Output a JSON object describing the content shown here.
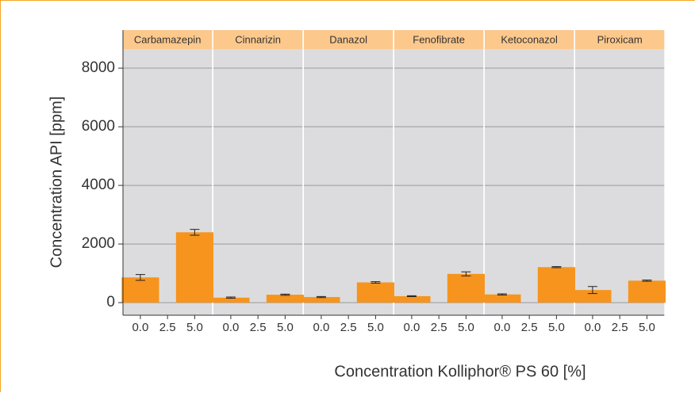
{
  "chart_data": {
    "type": "bar",
    "xlabel": "Concentration Kolliphor® PS 60 [%]",
    "ylabel": "Concentration API [ppm]",
    "color": "#f7941d",
    "strip_color": "#fdc88c",
    "panel_color": "#dcdcde",
    "ylim": [
      -430,
      8650
    ],
    "yticks": [
      0,
      2000,
      4000,
      6000,
      8000
    ],
    "grid": true,
    "xlim": [
      -1.6,
      6.6
    ],
    "xticks": [
      {
        "value": 0,
        "label": "0.0"
      },
      {
        "value": 2.5,
        "label": "2.5"
      },
      {
        "value": 5,
        "label": "5.0"
      }
    ],
    "panels": [
      {
        "title": "Carbamazepin",
        "x": [
          0,
          5
        ],
        "values": [
          860,
          2400
        ],
        "errors": [
          100,
          100
        ]
      },
      {
        "title": "Cinnarizin",
        "x": [
          0,
          5
        ],
        "values": [
          170,
          270
        ],
        "errors": [
          20,
          20
        ]
      },
      {
        "title": "Danazol",
        "x": [
          0,
          5
        ],
        "values": [
          190,
          690
        ],
        "errors": [
          20,
          25
        ]
      },
      {
        "title": "Fenofibrate",
        "x": [
          0,
          5
        ],
        "values": [
          220,
          980
        ],
        "errors": [
          15,
          70
        ]
      },
      {
        "title": "Ketoconazol",
        "x": [
          0,
          5
        ],
        "values": [
          280,
          1210
        ],
        "errors": [
          20,
          20
        ]
      },
      {
        "title": "Piroxicam",
        "x": [
          0,
          5
        ],
        "values": [
          430,
          750
        ],
        "errors": [
          120,
          20
        ]
      }
    ]
  }
}
